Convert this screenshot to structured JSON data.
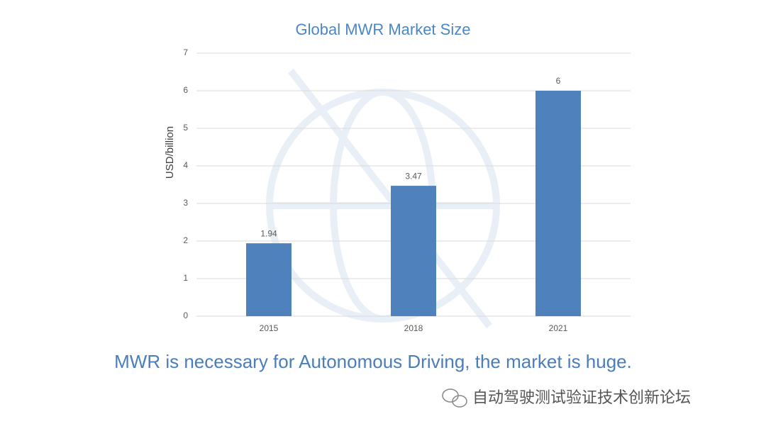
{
  "chart_data": {
    "type": "bar",
    "title": "Global MWR Market Size",
    "y_label": "USD/billion",
    "categories": [
      "2015",
      "2018",
      "2021"
    ],
    "values": [
      1.94,
      3.47,
      6
    ],
    "color": "#4f81bd",
    "ylim": [
      0,
      7
    ],
    "yticks": [
      0,
      1,
      2,
      3,
      4,
      5,
      6,
      7
    ],
    "grid": true
  },
  "slide": {
    "caption": "MWR is necessary for Autonomous Driving, the market is huge.",
    "watermark": "自动驾驶测试验证技术创新论坛"
  }
}
